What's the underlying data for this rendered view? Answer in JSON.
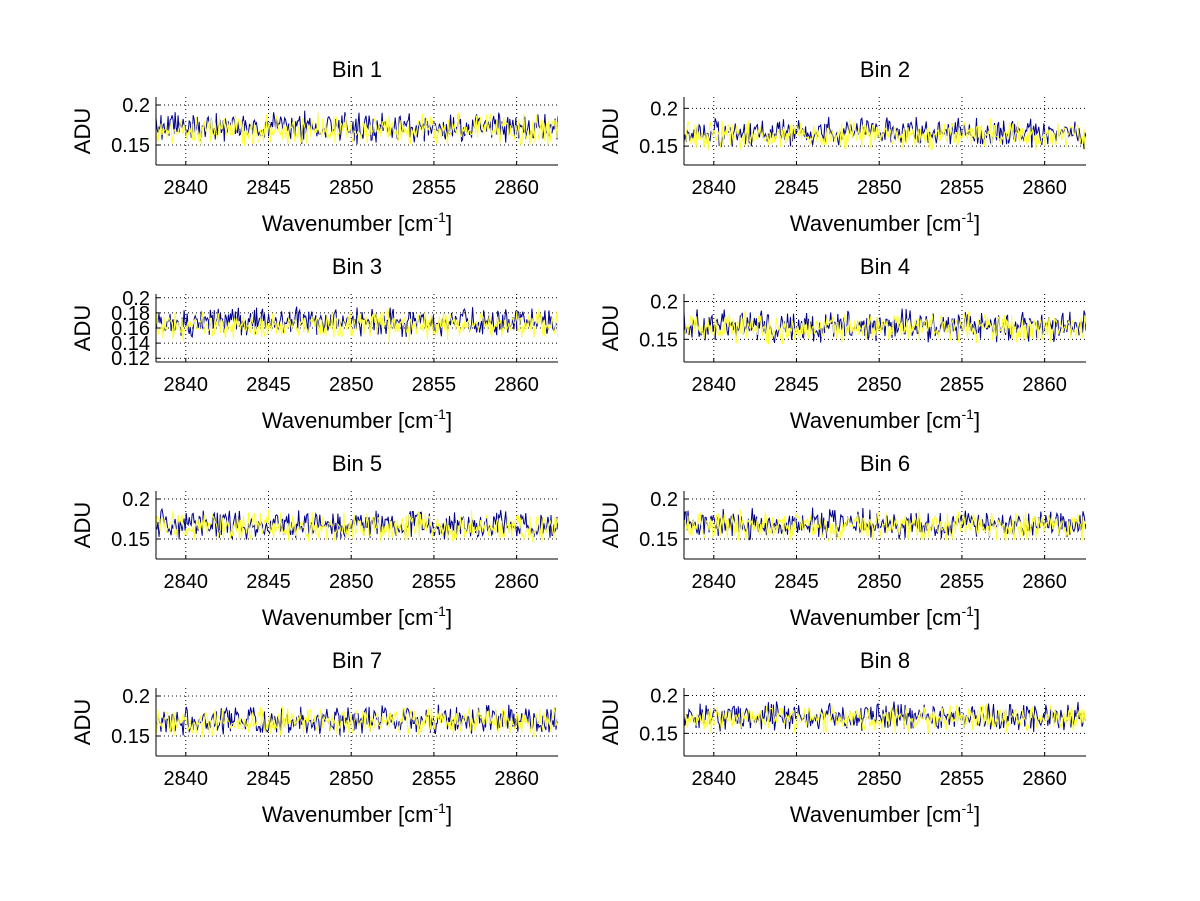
{
  "figure": {
    "background": "#ffffff",
    "series_colors": [
      "#00008b",
      "#ffff33"
    ]
  },
  "chart_data": [
    {
      "type": "line",
      "title": "Bin 1",
      "xlabel": "Wavenumber [cm",
      "xlabel_sup": "-1",
      "xlabel_end": "]",
      "ylabel": "ADU",
      "xlim": [
        2838.2,
        2862.5
      ],
      "ylim": [
        0.125,
        0.21
      ],
      "xticks": [
        2840,
        2845,
        2850,
        2855,
        2860
      ],
      "yticks": [
        0.15,
        0.2
      ],
      "ytick_labels": [
        "0.15",
        "0.2"
      ],
      "grid": true,
      "series": [
        {
          "mean": 0.172,
          "amp": 0.014,
          "seed": 11,
          "color": "#00008b"
        },
        {
          "mean": 0.17,
          "amp": 0.014,
          "seed": 12,
          "color": "#ffff33"
        }
      ]
    },
    {
      "type": "line",
      "title": "Bin 2",
      "xlabel": "Wavenumber [cm",
      "xlabel_sup": "-1",
      "xlabel_end": "]",
      "ylabel": "ADU",
      "xlim": [
        2838.2,
        2862.5
      ],
      "ylim": [
        0.125,
        0.215
      ],
      "xticks": [
        2840,
        2845,
        2850,
        2855,
        2860
      ],
      "yticks": [
        0.15,
        0.2
      ],
      "ytick_labels": [
        "0.15",
        "0.2"
      ],
      "grid": true,
      "series": [
        {
          "mean": 0.168,
          "amp": 0.014,
          "seed": 21,
          "color": "#00008b"
        },
        {
          "mean": 0.165,
          "amp": 0.014,
          "seed": 22,
          "color": "#ffff33"
        }
      ]
    },
    {
      "type": "line",
      "title": "Bin 3",
      "xlabel": "Wavenumber [cm",
      "xlabel_sup": "-1",
      "xlabel_end": "]",
      "ylabel": "ADU",
      "xlim": [
        2838.2,
        2862.5
      ],
      "ylim": [
        0.115,
        0.205
      ],
      "xticks": [
        2840,
        2845,
        2850,
        2855,
        2860
      ],
      "yticks": [
        0.12,
        0.14,
        0.16,
        0.18,
        0.2
      ],
      "ytick_labels": [
        "0.12",
        "0.14",
        "0.16",
        "0.18",
        "0.2"
      ],
      "grid": true,
      "series": [
        {
          "mean": 0.168,
          "amp": 0.013,
          "seed": 31,
          "color": "#00008b"
        },
        {
          "mean": 0.164,
          "amp": 0.014,
          "seed": 32,
          "color": "#ffff33"
        }
      ]
    },
    {
      "type": "line",
      "title": "Bin 4",
      "xlabel": "Wavenumber [cm",
      "xlabel_sup": "-1",
      "xlabel_end": "]",
      "ylabel": "ADU",
      "xlim": [
        2838.2,
        2862.5
      ],
      "ylim": [
        0.12,
        0.21
      ],
      "xticks": [
        2840,
        2845,
        2850,
        2855,
        2860
      ],
      "yticks": [
        0.15,
        0.2
      ],
      "ytick_labels": [
        "0.15",
        "0.2"
      ],
      "grid": true,
      "series": [
        {
          "mean": 0.168,
          "amp": 0.015,
          "seed": 41,
          "color": "#00008b"
        },
        {
          "mean": 0.166,
          "amp": 0.015,
          "seed": 42,
          "color": "#ffff33"
        }
      ]
    },
    {
      "type": "line",
      "title": "Bin 5",
      "xlabel": "Wavenumber [cm",
      "xlabel_sup": "-1",
      "xlabel_end": "]",
      "ylabel": "ADU",
      "xlim": [
        2838.2,
        2862.5
      ],
      "ylim": [
        0.125,
        0.21
      ],
      "xticks": [
        2840,
        2845,
        2850,
        2855,
        2860
      ],
      "yticks": [
        0.15,
        0.2
      ],
      "ytick_labels": [
        "0.15",
        "0.2"
      ],
      "grid": true,
      "series": [
        {
          "mean": 0.168,
          "amp": 0.013,
          "seed": 51,
          "color": "#00008b"
        },
        {
          "mean": 0.166,
          "amp": 0.013,
          "seed": 52,
          "color": "#ffff33"
        }
      ]
    },
    {
      "type": "line",
      "title": "Bin 6",
      "xlabel": "Wavenumber [cm",
      "xlabel_sup": "-1",
      "xlabel_end": "]",
      "ylabel": "ADU",
      "xlim": [
        2838.2,
        2862.5
      ],
      "ylim": [
        0.125,
        0.21
      ],
      "xticks": [
        2840,
        2845,
        2850,
        2855,
        2860
      ],
      "yticks": [
        0.15,
        0.2
      ],
      "ytick_labels": [
        "0.15",
        "0.2"
      ],
      "grid": true,
      "series": [
        {
          "mean": 0.169,
          "amp": 0.013,
          "seed": 61,
          "color": "#00008b"
        },
        {
          "mean": 0.166,
          "amp": 0.013,
          "seed": 62,
          "color": "#ffff33"
        }
      ]
    },
    {
      "type": "line",
      "title": "Bin 7",
      "xlabel": "Wavenumber [cm",
      "xlabel_sup": "-1",
      "xlabel_end": "]",
      "ylabel": "ADU",
      "xlim": [
        2838.2,
        2862.5
      ],
      "ylim": [
        0.125,
        0.21
      ],
      "xticks": [
        2840,
        2845,
        2850,
        2855,
        2860
      ],
      "yticks": [
        0.15,
        0.2
      ],
      "ytick_labels": [
        "0.15",
        "0.2"
      ],
      "grid": true,
      "series": [
        {
          "mean": 0.17,
          "amp": 0.013,
          "seed": 71,
          "color": "#00008b"
        },
        {
          "mean": 0.168,
          "amp": 0.013,
          "seed": 72,
          "color": "#ffff33"
        }
      ]
    },
    {
      "type": "line",
      "title": "Bin 8",
      "xlabel": "Wavenumber [cm",
      "xlabel_sup": "-1",
      "xlabel_end": "]",
      "ylabel": "ADU",
      "xlim": [
        2838.2,
        2862.5
      ],
      "ylim": [
        0.12,
        0.21
      ],
      "xticks": [
        2840,
        2845,
        2850,
        2855,
        2860
      ],
      "yticks": [
        0.15,
        0.2
      ],
      "ytick_labels": [
        "0.15",
        "0.2"
      ],
      "grid": true,
      "series": [
        {
          "mean": 0.172,
          "amp": 0.013,
          "seed": 81,
          "color": "#00008b"
        },
        {
          "mean": 0.17,
          "amp": 0.013,
          "seed": 82,
          "color": "#ffff33"
        }
      ]
    }
  ]
}
